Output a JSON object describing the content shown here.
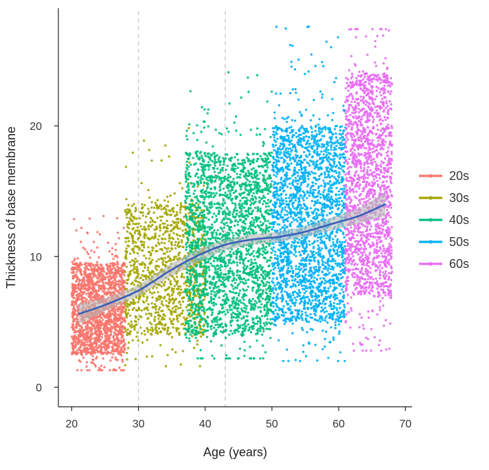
{
  "chart_data": {
    "type": "scatter",
    "xlabel": "Age (years)",
    "ylabel": "Thickness of base membrane",
    "xlim": [
      18,
      71
    ],
    "ylim": [
      -1.5,
      29
    ],
    "xticks": [
      20,
      30,
      40,
      50,
      60,
      70
    ],
    "xtick_labels": [
      "20",
      "30",
      "40",
      "50",
      "60",
      "70"
    ],
    "yticks": [
      0,
      10,
      20
    ],
    "ytick_labels": [
      "0",
      "10",
      "20"
    ],
    "reference_lines_x": [
      30,
      43
    ],
    "series": [
      {
        "name": "20s",
        "color": "#F8766D",
        "x_range": [
          20,
          28
        ],
        "y_core": [
          2.5,
          9.5
        ],
        "y_extremes": [
          1.3,
          13.1
        ],
        "mean": 5.8
      },
      {
        "name": "30s",
        "color": "#A3A500",
        "x_range": [
          28,
          40
        ],
        "y_core": [
          4,
          14
        ],
        "y_extremes": [
          1.6,
          20
        ],
        "mean": 8.2
      },
      {
        "name": "40s",
        "color": "#00BF7D",
        "x_range": [
          37,
          50
        ],
        "y_core": [
          4,
          18
        ],
        "y_extremes": [
          2.2,
          24.1
        ],
        "mean": 11.0
      },
      {
        "name": "50s",
        "color": "#00B0F6",
        "x_range": [
          50,
          61
        ],
        "y_core": [
          5,
          20
        ],
        "y_extremes": [
          2,
          27.6
        ],
        "mean": 11.8
      },
      {
        "name": "60s",
        "color": "#E76BF3",
        "x_range": [
          61,
          68
        ],
        "y_core": [
          7,
          24
        ],
        "y_extremes": [
          2.8,
          27.4
        ],
        "mean": 13.5
      }
    ],
    "trend": {
      "name": "smoothed fit",
      "color": "#3A5FB8",
      "ci_color": "#B5B5B5",
      "x": [
        21,
        25,
        30,
        35,
        39,
        43,
        47,
        51,
        55,
        59,
        63,
        67
      ],
      "y": [
        5.6,
        6.3,
        7.4,
        9.0,
        10.1,
        10.9,
        11.3,
        11.5,
        11.9,
        12.5,
        13.1,
        14.0
      ],
      "ci_halfwidth": [
        0.8,
        0.5,
        0.4,
        0.5,
        0.5,
        0.4,
        0.4,
        0.4,
        0.4,
        0.5,
        0.6,
        0.9
      ]
    },
    "legend": {
      "position": "right",
      "entries": [
        "20s",
        "30s",
        "40s",
        "50s",
        "60s"
      ]
    }
  }
}
